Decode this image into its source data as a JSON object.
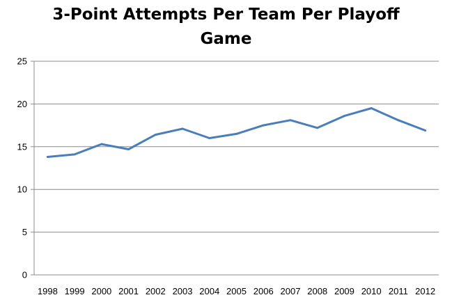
{
  "chart_data": {
    "type": "line",
    "title": "3-Point Attempts Per Team Per Playoff Game",
    "title_lines": [
      "3-Point Attempts Per Team Per Playoff",
      "Game"
    ],
    "xlabel": "",
    "ylabel": "",
    "categories": [
      "1998",
      "1999",
      "2000",
      "2001",
      "2002",
      "2003",
      "2004",
      "2005",
      "2006",
      "2007",
      "2008",
      "2009",
      "2010",
      "2011",
      "2012"
    ],
    "series": [
      {
        "values": [
          13.8,
          14.1,
          15.3,
          14.7,
          16.4,
          17.1,
          16.0,
          16.5,
          17.5,
          18.1,
          17.2,
          18.6,
          19.5,
          18.1,
          16.9
        ],
        "color": "#4a7ebb"
      }
    ],
    "ylim": [
      0,
      25
    ],
    "yticks": [
      "0",
      "5",
      "10",
      "15",
      "20",
      "25"
    ],
    "grid": true,
    "legend": "none"
  }
}
